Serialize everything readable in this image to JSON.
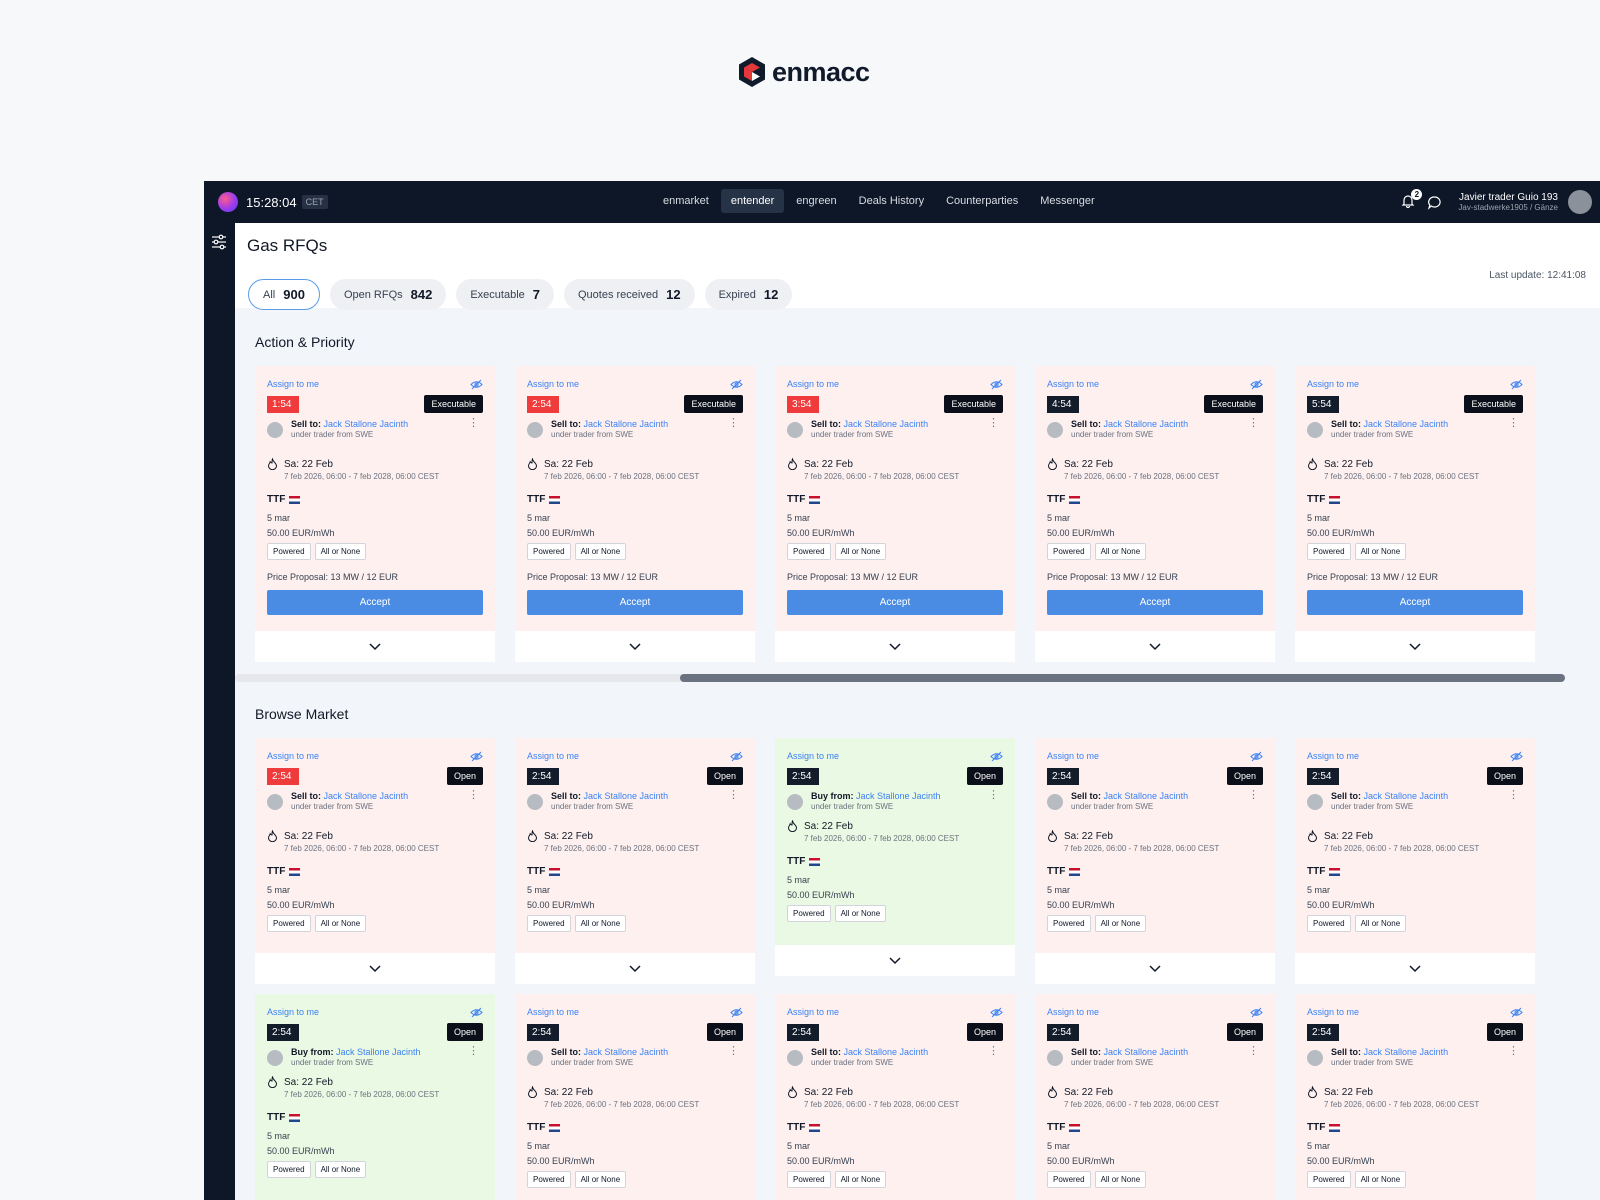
{
  "brand": {
    "name": "enmacc"
  },
  "topbar": {
    "time": "15:28:04",
    "timezone": "CET",
    "nav": [
      "enmarket",
      "entender",
      "engreen",
      "Deals History",
      "Counterparties",
      "Messenger"
    ],
    "active_nav": "entender",
    "notification_count": "2",
    "user_name": "Javier trader Guio 193",
    "user_org": "Jav-stadwerke1905 / Gänze"
  },
  "page": {
    "title": "Gas RFQs",
    "last_update": "Last update: 12:41:08"
  },
  "filters": [
    {
      "label": "All",
      "count": "900",
      "active": true
    },
    {
      "label": "Open RFQs",
      "count": "842"
    },
    {
      "label": "Executable",
      "count": "7"
    },
    {
      "label": "Quotes received",
      "count": "12"
    },
    {
      "label": "Expired",
      "count": "12"
    }
  ],
  "sections": {
    "action": "Action & Priority",
    "browse": "Browse Market"
  },
  "card_text": {
    "assign": "Assign to me",
    "sell_to": "Sell to:",
    "buy_from": "Buy from:",
    "counterparty": "Jack Stallone Jacinth",
    "sub": "under trader from SWE",
    "date": "Sa: 22 Feb",
    "range": "7 feb 2026, 06:00 - 7 feb 2028, 06:00 CEST",
    "hub": "TTF",
    "qty": "5 mar",
    "price": "50.00 EUR/mWh",
    "tag1": "Powered",
    "tag2": "All or None",
    "proposal": "Price Proposal: 13 MW / 12 EUR",
    "accept": "Accept"
  },
  "cards_action": [
    {
      "timer": "1:54",
      "urgent": true,
      "status": "Executable",
      "side": "sell"
    },
    {
      "timer": "2:54",
      "urgent": true,
      "status": "Executable",
      "side": "sell"
    },
    {
      "timer": "3:54",
      "urgent": true,
      "status": "Executable",
      "side": "sell"
    },
    {
      "timer": "4:54",
      "urgent": false,
      "status": "Executable",
      "side": "sell"
    },
    {
      "timer": "5:54",
      "urgent": false,
      "status": "Executable",
      "side": "sell"
    }
  ],
  "cards_browse_1": [
    {
      "timer": "2:54",
      "urgent": true,
      "status": "Open",
      "side": "sell"
    },
    {
      "timer": "2:54",
      "urgent": false,
      "status": "Open",
      "side": "sell"
    },
    {
      "timer": "2:54",
      "urgent": false,
      "status": "Open",
      "side": "buy"
    },
    {
      "timer": "2:54",
      "urgent": false,
      "status": "Open",
      "side": "sell"
    },
    {
      "timer": "2:54",
      "urgent": false,
      "status": "Open",
      "side": "sell"
    }
  ],
  "cards_browse_2": [
    {
      "timer": "2:54",
      "urgent": false,
      "status": "Open",
      "side": "buy"
    },
    {
      "timer": "2:54",
      "urgent": false,
      "status": "Open",
      "side": "sell"
    },
    {
      "timer": "2:54",
      "urgent": false,
      "status": "Open",
      "side": "sell"
    },
    {
      "timer": "2:54",
      "urgent": false,
      "status": "Open",
      "side": "sell"
    },
    {
      "timer": "2:54",
      "urgent": false,
      "status": "Open",
      "side": "sell"
    }
  ],
  "colors": {
    "accent": "#4a8be3",
    "urgent": "#ef3b3b",
    "topbar": "#0d1727",
    "sell_bg": "#fdf0ef",
    "buy_bg": "#eaf9e3"
  },
  "icons": [
    "filter-sliders-icon",
    "bell-icon",
    "chat-icon",
    "hidden-eye-icon",
    "flame-icon",
    "chevron-down-icon",
    "kebab-icon",
    "nl-flag-icon"
  ]
}
